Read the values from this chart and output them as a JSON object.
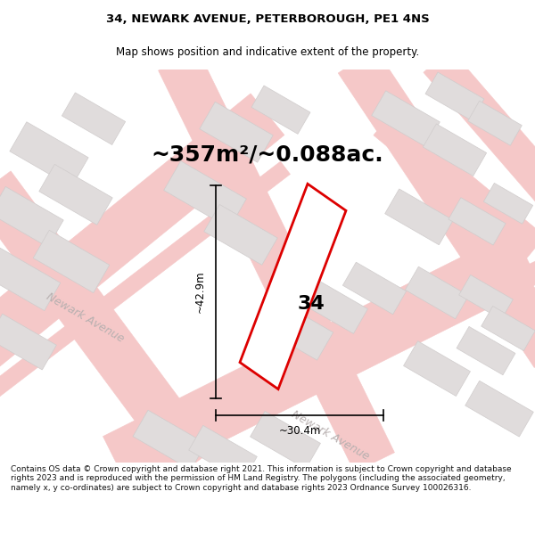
{
  "title": "34, NEWARK AVENUE, PETERBOROUGH, PE1 4NS",
  "subtitle": "Map shows position and indicative extent of the property.",
  "area_text": "~357m²/~0.088ac.",
  "dim_height": "~42.9m",
  "dim_width": "~30.4m",
  "property_number": "34",
  "footer_text": "Contains OS data © Crown copyright and database right 2021. This information is subject to Crown copyright and database rights 2023 and is reproduced with the permission of HM Land Registry. The polygons (including the associated geometry, namely x, y co-ordinates) are subject to Crown copyright and database rights 2023 Ordnance Survey 100026316.",
  "map_bg": "#ffffff",
  "road_color": "#f5c8c8",
  "road_fill": "#f5c8c8",
  "building_fill": "#e0dcdc",
  "building_edge": "#d0cccc",
  "property_color": "#dd0000",
  "title_color": "#000000",
  "street_label_color": "#b8b0b0",
  "footer_color": "#111111",
  "title_fontsize": 9.5,
  "subtitle_fontsize": 8.5,
  "area_fontsize": 18,
  "dim_fontsize": 8.5,
  "footer_fontsize": 6.5,
  "number_fontsize": 16,
  "street_fontsize": 9,
  "road_lw": 0.4,
  "building_lw": 0.5,
  "property_lw": 2.0,
  "dim_lw": 1.2
}
